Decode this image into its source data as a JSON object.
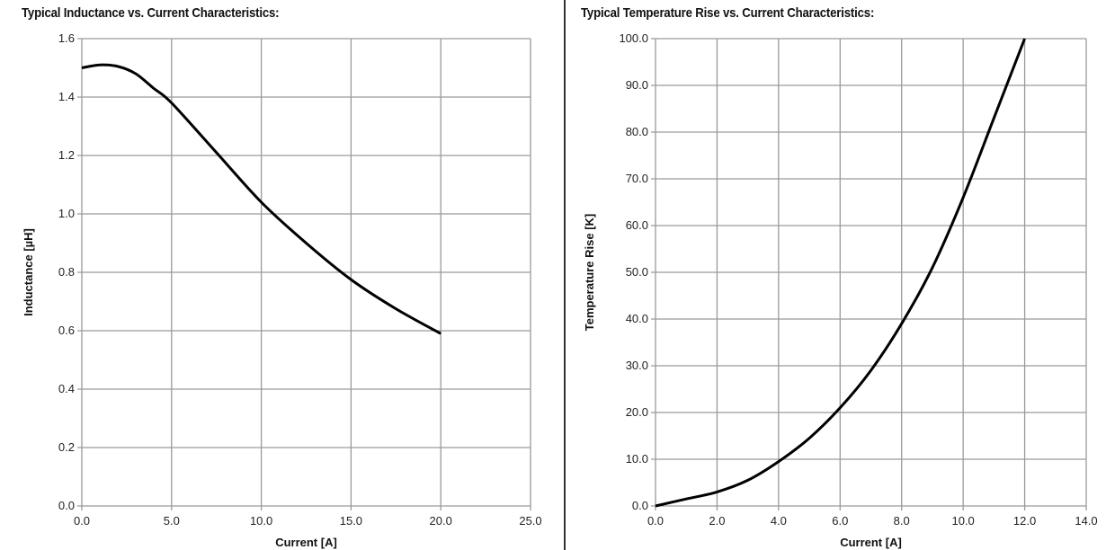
{
  "chart_data": [
    {
      "type": "line",
      "title": "Typical Inductance vs. Current Characteristics:",
      "xlabel": "Current [A]",
      "ylabel": "Inductance [µH]",
      "xlim": [
        0,
        25
      ],
      "ylim": [
        0,
        1.6
      ],
      "xticks": [
        "0.0",
        "5.0",
        "10.0",
        "15.0",
        "20.0",
        "25.0"
      ],
      "yticks": [
        "0.0",
        "0.2",
        "0.4",
        "0.6",
        "0.8",
        "1.0",
        "1.2",
        "1.4",
        "1.6"
      ],
      "grid": true,
      "series": [
        {
          "name": "Inductance",
          "color": "#000000",
          "x": [
            0,
            1,
            2,
            3,
            4,
            5,
            7.5,
            10,
            12.5,
            15,
            17.5,
            20
          ],
          "y": [
            1.5,
            1.51,
            1.505,
            1.48,
            1.43,
            1.38,
            1.21,
            1.04,
            0.9,
            0.775,
            0.675,
            0.59
          ]
        }
      ]
    },
    {
      "type": "line",
      "title": "Typical Temperature Rise vs. Current Characteristics:",
      "xlabel": "Current [A]",
      "ylabel": "Temperature Rise [K]",
      "xlim": [
        0,
        14
      ],
      "ylim": [
        0,
        100
      ],
      "xticks": [
        "0.0",
        "2.0",
        "4.0",
        "6.0",
        "8.0",
        "10.0",
        "12.0",
        "14.0"
      ],
      "yticks": [
        "0.0",
        "10.0",
        "20.0",
        "30.0",
        "40.0",
        "50.0",
        "60.0",
        "70.0",
        "80.0",
        "90.0",
        "100.0"
      ],
      "grid": true,
      "series": [
        {
          "name": "Temperature Rise",
          "color": "#000000",
          "x": [
            0,
            1,
            2,
            3,
            4,
            5,
            6,
            7,
            8,
            9,
            10,
            11,
            12
          ],
          "y": [
            0,
            1.5,
            3,
            5.5,
            9.5,
            14.5,
            21,
            29,
            39,
            51,
            66,
            83,
            100
          ]
        }
      ]
    }
  ]
}
